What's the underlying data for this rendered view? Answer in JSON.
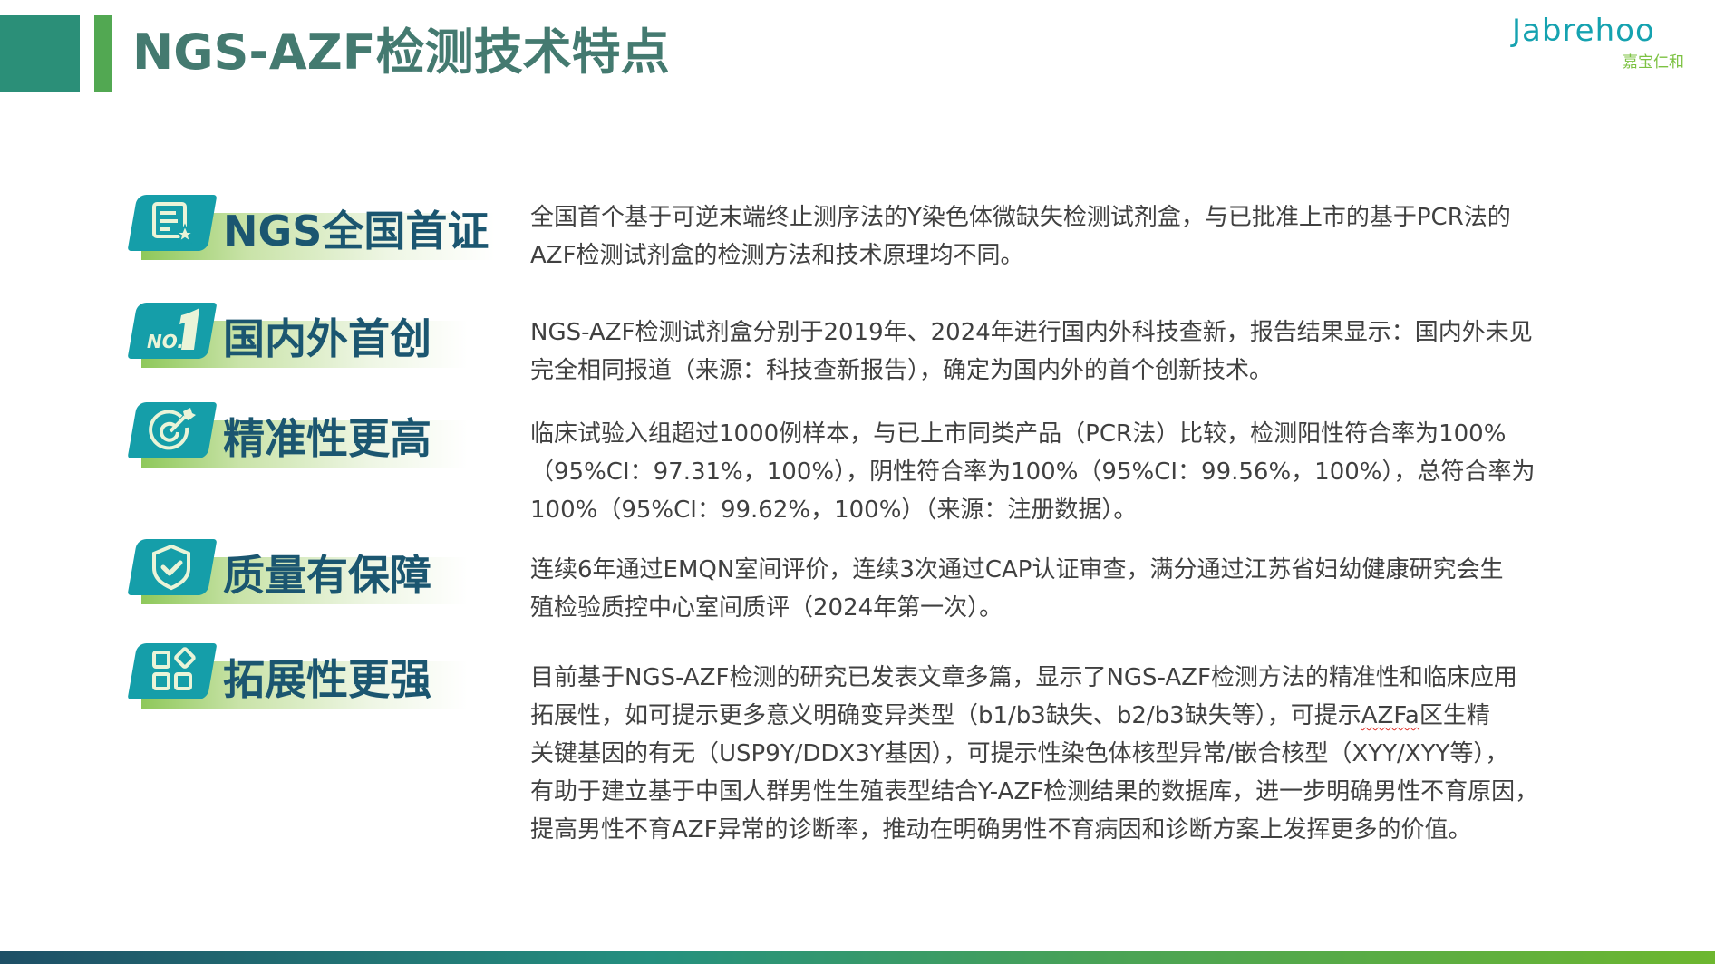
{
  "header": {
    "title": "NGS-AZF检测技术特点"
  },
  "logo": {
    "text": "Jabrehoo",
    "chinese": "嘉宝仁和"
  },
  "features": [
    {
      "label": "NGS全国首证",
      "icon": "certificate-star-icon",
      "lines": [
        "全国首个基于可逆末端终止测序法的Y染色体微缺失检测试剂盒，与已批准上市的基于PCR法的",
        "AZF检测试剂盒的检测方法和技术原理均不同。"
      ]
    },
    {
      "label": "国内外首创",
      "icon": "no1-icon",
      "lines": [
        "NGS-AZF检测试剂盒分别于2019年、2024年进行国内外科技查新，报告结果显示：国内外未见",
        "完全相同报道（来源：科技查新报告），确定为国内外的首个创新技术。"
      ]
    },
    {
      "label": "精准性更高",
      "icon": "target-icon",
      "lines": [
        "临床试验入组超过1000例样本，与已上市同类产品（PCR法）比较，检测阳性符合率为100%",
        "（95%CI：97.31%，100%），阴性符合率为100%（95%CI：99.56%，100%），总符合率为",
        "100%（95%CI：99.62%，100%）（来源：注册数据）。"
      ]
    },
    {
      "label": "质量有保障",
      "icon": "shield-check-icon",
      "lines": [
        "连续6年通过EMQN室间评价，连续3次通过CAP认证审查，满分通过江苏省妇幼健康研究会生",
        "殖检验质控中心室间质评（2024年第一次）。"
      ]
    },
    {
      "label": "拓展性更强",
      "icon": "grid-apps-icon",
      "lines": [
        "目前基于NGS-AZF检测的研究已发表文章多篇，显示了NGS-AZF检测方法的精准性和临床应用",
        "拓展性，如可提示更多意义明确变异类型（b1/b3缺失、b2/b3缺失等），可提示",
        "关键基因的有无（USP9Y/DDX3Y基因），可提示性染色体核型异常/嵌合核型（XYY/XYY等），",
        "有助于建立基于中国人群男性生殖表型结合Y-AZF检测结果的数据库，进一步明确男性不育原因，",
        "提高男性不育AZF异常的诊断率，推动在明确男性不育病因和诊断方案上发挥更多的价值。"
      ],
      "line2_flagged": "AZFa",
      "line2_tail": "区生精"
    }
  ],
  "colors": {
    "primary_teal": "#159ea9",
    "header_green": "#2b8f78",
    "accent_green": "#52a852",
    "label_text": "#1b5670",
    "title_text": "#447a70"
  }
}
